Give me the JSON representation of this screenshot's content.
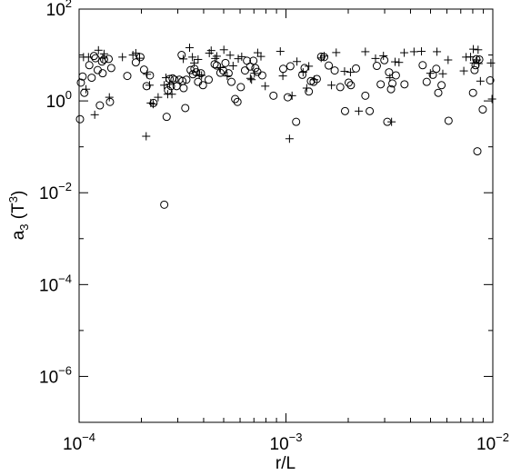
{
  "chart_data": {
    "type": "scatter",
    "title": "",
    "xlabel": {
      "text": "r/L"
    },
    "ylabel": {
      "base": "a",
      "sub": "3",
      "open": " (T",
      "sup": "3",
      "close": ")"
    },
    "x_scale": "log",
    "y_scale": "log",
    "xlim": [
      0.0001,
      0.01
    ],
    "ylim": [
      1e-07,
      100
    ],
    "grid": false,
    "legend": "none",
    "x_ticks": [
      {
        "value": 0.0001,
        "base": "10",
        "exp": "−4"
      },
      {
        "value": 0.001,
        "base": "10",
        "exp": "−3"
      },
      {
        "value": 0.01,
        "base": "10",
        "exp": "−2"
      }
    ],
    "y_ticks": [
      {
        "value": 100,
        "base": "10",
        "exp": "2"
      },
      {
        "value": 1,
        "base": "10",
        "exp": "0"
      },
      {
        "value": 0.01,
        "base": "10",
        "exp": "−2"
      },
      {
        "value": 0.0001,
        "base": "10",
        "exp": "−4"
      },
      {
        "value": 1e-06,
        "base": "10",
        "exp": "−6"
      }
    ],
    "y_minor_ticks": [
      10,
      0.1,
      0.001,
      1e-05,
      1e-07
    ],
    "series": [
      {
        "marker": "circle",
        "x": [
          0.000101,
          0.000102,
          0.000104,
          0.000106,
          0.000112,
          0.000115,
          0.000118,
          0.00012,
          0.000123,
          0.000126,
          0.000129,
          0.00013,
          0.000132,
          0.000139,
          0.000141,
          0.000143,
          0.000171,
          0.000188,
          0.000198,
          0.000206,
          0.000212,
          0.00022,
          0.000229,
          0.000258,
          0.000265,
          0.000269,
          0.000274,
          0.000278,
          0.000283,
          0.000289,
          0.000296,
          0.000305,
          0.000313,
          0.000316,
          0.00032,
          0.000326,
          0.00033,
          0.000346,
          0.000355,
          0.000361,
          0.000368,
          0.000376,
          0.000388,
          0.000397,
          0.000423,
          0.000452,
          0.000463,
          0.000482,
          0.000497,
          0.00051,
          0.000528,
          0.000545,
          0.000568,
          0.000583,
          0.000605,
          0.000634,
          0.000648,
          0.000671,
          0.000696,
          0.000711,
          0.000727,
          0.000768,
          0.00087,
          0.00097,
          0.00102,
          0.00105,
          0.00112,
          0.0012,
          0.00123,
          0.00129,
          0.00132,
          0.00136,
          0.00141,
          0.00148,
          0.00153,
          0.00161,
          0.00172,
          0.00183,
          0.00193,
          0.00201,
          0.00206,
          0.00218,
          0.00242,
          0.00254,
          0.00275,
          0.00287,
          0.00299,
          0.00309,
          0.00315,
          0.00322,
          0.00327,
          0.0034,
          0.00374,
          0.00458,
          0.00479,
          0.00513,
          0.00533,
          0.00545,
          0.00565,
          0.00611,
          0.00802,
          0.00816,
          0.00825,
          0.00832,
          0.00842,
          0.0086,
          0.00894,
          0.00971
        ],
        "y": [
          0.4,
          2.5,
          3.4,
          1.5,
          6,
          3.2,
          9.5,
          8.5,
          4.7,
          0.8,
          7.2,
          4,
          8,
          8.2,
          0.95,
          5.2,
          3.5,
          6.9,
          9,
          4.8,
          2.1,
          3.6,
          0.9,
          0.0055,
          0.45,
          1.7,
          3,
          2.1,
          3.1,
          2.9,
          2.1,
          2.9,
          10,
          2.7,
          1.9,
          0.7,
          2.9,
          4.7,
          3.8,
          5,
          4.2,
          2.6,
          4,
          2.2,
          2.9,
          6.3,
          5.9,
          4.1,
          4.6,
          6.7,
          4,
          2.6,
          1.1,
          0.95,
          2,
          4.6,
          7.5,
          5.6,
          7.5,
          5.2,
          4.3,
          3.6,
          1.3,
          5,
          1.2,
          5.7,
          0.35,
          3.7,
          5.2,
          1.6,
          2.7,
          2.6,
          3,
          9.2,
          9,
          5.9,
          4.6,
          2,
          0.6,
          2.5,
          2.2,
          5.1,
          1.3,
          0.6,
          5.8,
          2.3,
          7.7,
          0.35,
          4.2,
          1.8,
          2.4,
          3.6,
          2.3,
          6,
          2.6,
          3.7,
          5,
          1.5,
          2.2,
          0.37,
          1.5,
          4.7,
          6,
          8.1,
          0.08,
          8,
          0.65,
          2.8
        ]
      },
      {
        "marker": "plus",
        "x": [
          0.000105,
          0.000108,
          0.000111,
          0.000119,
          0.000124,
          0.00013,
          0.000132,
          0.00014,
          0.000162,
          0.000182,
          0.000188,
          0.000196,
          0.000211,
          0.000213,
          0.000219,
          0.000222,
          0.000228,
          0.000241,
          0.000258,
          0.000263,
          0.000268,
          0.000274,
          0.000281,
          0.000319,
          0.000342,
          0.000353,
          0.00036,
          0.000376,
          0.000381,
          0.000391,
          0.000426,
          0.000435,
          0.000455,
          0.000463,
          0.000482,
          0.000501,
          0.00052,
          0.000537,
          0.000555,
          0.000588,
          0.000611,
          0.000673,
          0.000682,
          0.000704,
          0.00073,
          0.000757,
          0.000794,
          0.000939,
          0.000966,
          0.00104,
          0.00107,
          0.00113,
          0.00121,
          0.00126,
          0.00129,
          0.00137,
          0.00148,
          0.00153,
          0.00166,
          0.00175,
          0.00192,
          0.00205,
          0.00225,
          0.00242,
          0.00271,
          0.00296,
          0.00318,
          0.00324,
          0.00337,
          0.00352,
          0.00373,
          0.00416,
          0.00452,
          0.00499,
          0.00537,
          0.00573,
          0.00608,
          0.00724,
          0.00743,
          0.00781,
          0.00805,
          0.0081,
          0.00839,
          0.00849,
          0.00854,
          0.00871,
          0.00979,
          0.00991
        ],
        "y": [
          9,
          1.8,
          9,
          0.5,
          12.7,
          8.6,
          10.6,
          1.2,
          9,
          10,
          11,
          8.5,
          0.17,
          3.8,
          2.2,
          0.9,
          0.85,
          1.2,
          2.2,
          3.2,
          1.4,
          2.3,
          1.4,
          8.2,
          14.4,
          9,
          6.7,
          8,
          3.7,
          3.6,
          11,
          12.5,
          8.4,
          9.4,
          5.3,
          13,
          3.5,
          9.9,
          5.8,
          8.3,
          9.2,
          3.1,
          2.9,
          4,
          11.2,
          9.3,
          2.1,
          12,
          3.5,
          0.15,
          1.3,
          7.2,
          4.2,
          1.9,
          5.7,
          2.9,
          8.6,
          9.5,
          2.2,
          11.3,
          4.4,
          4.2,
          0.6,
          11.8,
          8.4,
          9.6,
          3.2,
          0.35,
          7.1,
          6.9,
          11.2,
          11.8,
          12,
          4,
          11.8,
          3.9,
          7.8,
          4.5,
          9,
          9.1,
          13.4,
          6.7,
          7.8,
          13,
          6.5,
          2.7,
          6.7,
          1.1
        ]
      }
    ]
  }
}
